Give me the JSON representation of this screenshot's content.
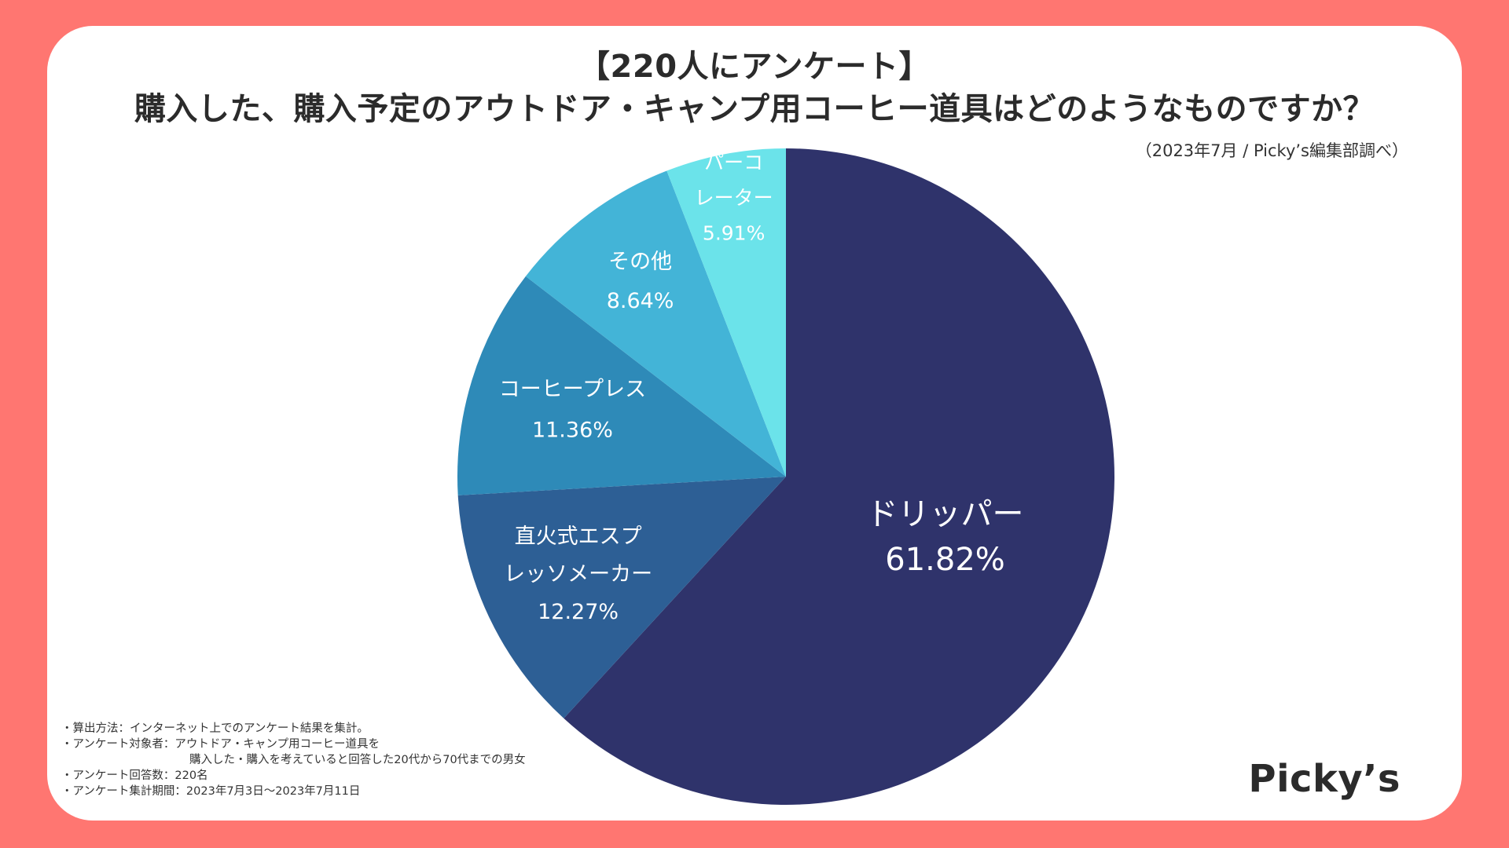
{
  "header": {
    "title_line1": "【220人にアンケート】",
    "title_line2": "購入した、購入予定のアウトドア・キャンプ用コーヒー道具はどのようなものですか？",
    "source": "（2023年7月 / Picky’s編集部調べ）"
  },
  "chart_data": {
    "type": "pie",
    "title": "購入した、購入予定のアウトドア・キャンプ用コーヒー道具はどのようなものですか？",
    "start": "12 o'clock",
    "direction": "clockwise",
    "slices": [
      {
        "lines": [
          "ドリッパー"
        ],
        "value": 61.82,
        "value_label": "61.82%",
        "color": "#2F336B"
      },
      {
        "lines": [
          "直火式エスプ",
          "レッソメーカー"
        ],
        "value": 12.27,
        "value_label": "12.27%",
        "color": "#2D5F95"
      },
      {
        "lines": [
          "コーヒープレス"
        ],
        "value": 11.36,
        "value_label": "11.36%",
        "color": "#2E8AB8"
      },
      {
        "lines": [
          "その他"
        ],
        "value": 8.64,
        "value_label": "8.64%",
        "color": "#43B4D7"
      },
      {
        "lines": [
          "パーコ",
          "レーター"
        ],
        "value": 5.91,
        "value_label": "5.91%",
        "color": "#6BE3EA"
      }
    ]
  },
  "notes": {
    "line1": "・算出方法：インターネット上でのアンケート結果を集計。",
    "line2": "・アンケート対象者：アウトドア・キャンプ用コーヒー道具を",
    "line3": "購入した・購入を考えていると回答した20代から70代までの男女",
    "line4": "・アンケート回答数：220名",
    "line5": "・アンケート集計期間：2023年7月3日〜2023年7月11日"
  },
  "logo": {
    "text": "Picky’s"
  },
  "colors": {
    "background": "#FF7671",
    "card": "#FFFFFF"
  }
}
